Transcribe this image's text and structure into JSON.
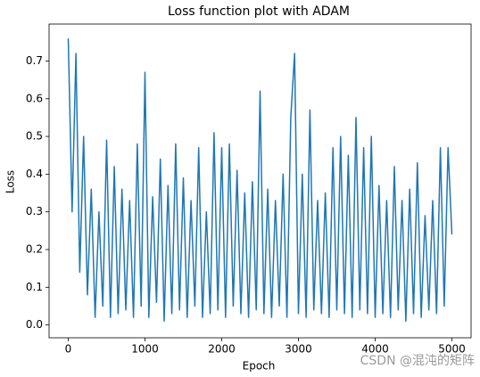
{
  "chart_data": {
    "type": "line",
    "title": "Loss function plot with ADAM",
    "xlabel": "Epoch",
    "ylabel": "Loss",
    "watermark": "CSDN @混沌的矩阵",
    "color": "#1f77b4",
    "x": [
      0,
      50,
      100,
      150,
      200,
      250,
      300,
      350,
      400,
      450,
      500,
      550,
      600,
      650,
      700,
      750,
      800,
      850,
      900,
      950,
      1000,
      1050,
      1100,
      1150,
      1200,
      1250,
      1300,
      1350,
      1400,
      1450,
      1500,
      1550,
      1600,
      1650,
      1700,
      1750,
      1800,
      1850,
      1900,
      1950,
      2000,
      2050,
      2100,
      2150,
      2200,
      2250,
      2300,
      2350,
      2400,
      2450,
      2500,
      2550,
      2600,
      2650,
      2700,
      2750,
      2800,
      2850,
      2900,
      2950,
      3000,
      3050,
      3100,
      3150,
      3200,
      3250,
      3300,
      3350,
      3400,
      3450,
      3500,
      3550,
      3600,
      3650,
      3700,
      3750,
      3800,
      3850,
      3900,
      3950,
      4000,
      4050,
      4100,
      4150,
      4200,
      4250,
      4300,
      4350,
      4400,
      4450,
      4500,
      4550,
      4600,
      4650,
      4700,
      4750,
      4800,
      4850,
      4900,
      4950,
      5000
    ],
    "values": [
      0.76,
      0.3,
      0.72,
      0.14,
      0.5,
      0.08,
      0.36,
      0.02,
      0.3,
      0.05,
      0.49,
      0.02,
      0.42,
      0.03,
      0.36,
      0.04,
      0.33,
      0.02,
      0.48,
      0.05,
      0.67,
      0.02,
      0.34,
      0.06,
      0.44,
      0.01,
      0.37,
      0.03,
      0.48,
      0.04,
      0.39,
      0.02,
      0.33,
      0.05,
      0.47,
      0.02,
      0.3,
      0.03,
      0.51,
      0.04,
      0.47,
      0.02,
      0.48,
      0.05,
      0.41,
      0.03,
      0.35,
      0.02,
      0.38,
      0.04,
      0.62,
      0.03,
      0.36,
      0.02,
      0.33,
      0.05,
      0.4,
      0.02,
      0.55,
      0.72,
      0.03,
      0.4,
      0.02,
      0.57,
      0.04,
      0.33,
      0.03,
      0.35,
      0.02,
      0.47,
      0.04,
      0.5,
      0.03,
      0.45,
      0.02,
      0.55,
      0.04,
      0.47,
      0.03,
      0.5,
      0.02,
      0.37,
      0.03,
      0.33,
      0.02,
      0.42,
      0.04,
      0.33,
      0.01,
      0.36,
      0.03,
      0.43,
      0.02,
      0.29,
      0.04,
      0.33,
      0.03,
      0.47,
      0.05,
      0.47,
      0.24
    ],
    "xlim": [
      -250,
      5250
    ],
    "ylim": [
      -0.034,
      0.798
    ],
    "xticks": [
      0,
      1000,
      2000,
      3000,
      4000,
      5000
    ],
    "yticks": [
      {
        "value": 0,
        "label": "0.0"
      },
      0.1,
      0.2,
      0.3,
      0.4,
      0.5,
      0.6,
      0.7
    ]
  }
}
